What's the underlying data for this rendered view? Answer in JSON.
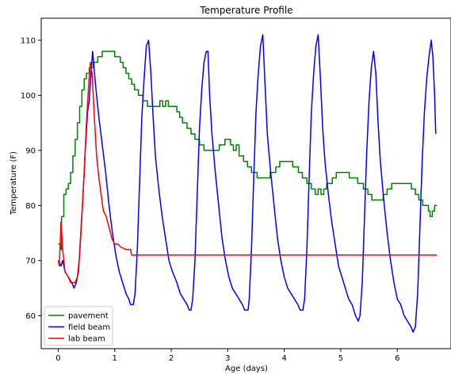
{
  "chart_data": {
    "type": "line",
    "title": "Temperature Profile",
    "xlabel": "Age (days)",
    "ylabel": "Temperature (F)",
    "xlim": [
      -0.3,
      6.95
    ],
    "ylim": [
      54,
      114
    ],
    "xticks": [
      0,
      1,
      2,
      3,
      4,
      5,
      6
    ],
    "yticks": [
      60,
      70,
      80,
      90,
      100,
      110
    ],
    "grid": false,
    "legend_position": "lower-left",
    "series": [
      {
        "name": "pavement",
        "color": "#008000",
        "style": "step",
        "points": [
          [
            0.0,
            73
          ],
          [
            0.04,
            72
          ],
          [
            0.06,
            78
          ],
          [
            0.1,
            82
          ],
          [
            0.14,
            83
          ],
          [
            0.18,
            84
          ],
          [
            0.22,
            86
          ],
          [
            0.26,
            89
          ],
          [
            0.3,
            92
          ],
          [
            0.34,
            95
          ],
          [
            0.38,
            98
          ],
          [
            0.42,
            101
          ],
          [
            0.46,
            103
          ],
          [
            0.5,
            104
          ],
          [
            0.55,
            105
          ],
          [
            0.62,
            106
          ],
          [
            0.7,
            107
          ],
          [
            0.78,
            108
          ],
          [
            0.95,
            108
          ],
          [
            1.0,
            107
          ],
          [
            1.1,
            106
          ],
          [
            1.15,
            105
          ],
          [
            1.2,
            104
          ],
          [
            1.25,
            103
          ],
          [
            1.3,
            102
          ],
          [
            1.35,
            101
          ],
          [
            1.42,
            100
          ],
          [
            1.5,
            99
          ],
          [
            1.58,
            98
          ],
          [
            1.75,
            98
          ],
          [
            1.8,
            99
          ],
          [
            1.85,
            98
          ],
          [
            1.9,
            99
          ],
          [
            1.95,
            98
          ],
          [
            2.05,
            98
          ],
          [
            2.1,
            97
          ],
          [
            2.15,
            96
          ],
          [
            2.2,
            95
          ],
          [
            2.28,
            94
          ],
          [
            2.35,
            93
          ],
          [
            2.42,
            92
          ],
          [
            2.5,
            91
          ],
          [
            2.58,
            90
          ],
          [
            2.8,
            90
          ],
          [
            2.85,
            91
          ],
          [
            2.95,
            92
          ],
          [
            3.05,
            91
          ],
          [
            3.1,
            90
          ],
          [
            3.15,
            91
          ],
          [
            3.2,
            89
          ],
          [
            3.28,
            88
          ],
          [
            3.35,
            87
          ],
          [
            3.42,
            86
          ],
          [
            3.52,
            85
          ],
          [
            3.7,
            85
          ],
          [
            3.75,
            86
          ],
          [
            3.85,
            87
          ],
          [
            3.92,
            88
          ],
          [
            4.1,
            88
          ],
          [
            4.15,
            87
          ],
          [
            4.25,
            86
          ],
          [
            4.32,
            85
          ],
          [
            4.4,
            84
          ],
          [
            4.48,
            83
          ],
          [
            4.55,
            82
          ],
          [
            4.6,
            83
          ],
          [
            4.65,
            82
          ],
          [
            4.7,
            83
          ],
          [
            4.75,
            84
          ],
          [
            4.85,
            85
          ],
          [
            4.92,
            86
          ],
          [
            5.1,
            86
          ],
          [
            5.15,
            85
          ],
          [
            5.25,
            85
          ],
          [
            5.3,
            84
          ],
          [
            5.4,
            83
          ],
          [
            5.48,
            82
          ],
          [
            5.55,
            81
          ],
          [
            5.72,
            81
          ],
          [
            5.75,
            82
          ],
          [
            5.82,
            83
          ],
          [
            5.9,
            84
          ],
          [
            6.2,
            84
          ],
          [
            6.25,
            83
          ],
          [
            6.32,
            82
          ],
          [
            6.38,
            81
          ],
          [
            6.45,
            80
          ],
          [
            6.55,
            79
          ],
          [
            6.58,
            78
          ],
          [
            6.62,
            79
          ],
          [
            6.66,
            80
          ],
          [
            6.7,
            80
          ]
        ]
      },
      {
        "name": "field beam",
        "color": "#0000ff",
        "style": "line",
        "points": [
          [
            0.0,
            70
          ],
          [
            0.05,
            69
          ],
          [
            0.08,
            70
          ],
          [
            0.12,
            68
          ],
          [
            0.18,
            67
          ],
          [
            0.24,
            66
          ],
          [
            0.28,
            65
          ],
          [
            0.32,
            66
          ],
          [
            0.36,
            68
          ],
          [
            0.4,
            75
          ],
          [
            0.44,
            82
          ],
          [
            0.48,
            90
          ],
          [
            0.52,
            97
          ],
          [
            0.55,
            99
          ],
          [
            0.58,
            104
          ],
          [
            0.61,
            108
          ],
          [
            0.66,
            102
          ],
          [
            0.72,
            96
          ],
          [
            0.78,
            91
          ],
          [
            0.84,
            86
          ],
          [
            0.9,
            80
          ],
          [
            0.96,
            75
          ],
          [
            1.02,
            71
          ],
          [
            1.08,
            68
          ],
          [
            1.14,
            66
          ],
          [
            1.2,
            64
          ],
          [
            1.25,
            63
          ],
          [
            1.28,
            62
          ],
          [
            1.33,
            62
          ],
          [
            1.36,
            64
          ],
          [
            1.4,
            72
          ],
          [
            1.44,
            84
          ],
          [
            1.48,
            96
          ],
          [
            1.52,
            103
          ],
          [
            1.56,
            109
          ],
          [
            1.6,
            110
          ],
          [
            1.64,
            104
          ],
          [
            1.68,
            96
          ],
          [
            1.72,
            89
          ],
          [
            1.78,
            83
          ],
          [
            1.84,
            78
          ],
          [
            1.9,
            74
          ],
          [
            1.96,
            70
          ],
          [
            2.02,
            68
          ],
          [
            2.1,
            66
          ],
          [
            2.16,
            64
          ],
          [
            2.22,
            63
          ],
          [
            2.28,
            62
          ],
          [
            2.32,
            61
          ],
          [
            2.35,
            61
          ],
          [
            2.38,
            63
          ],
          [
            2.42,
            70
          ],
          [
            2.46,
            82
          ],
          [
            2.5,
            94
          ],
          [
            2.54,
            101
          ],
          [
            2.58,
            106
          ],
          [
            2.62,
            108
          ],
          [
            2.65,
            108
          ],
          [
            2.68,
            100
          ],
          [
            2.72,
            93
          ],
          [
            2.78,
            86
          ],
          [
            2.84,
            80
          ],
          [
            2.9,
            74
          ],
          [
            2.96,
            70
          ],
          [
            3.02,
            67
          ],
          [
            3.08,
            65
          ],
          [
            3.14,
            64
          ],
          [
            3.2,
            63
          ],
          [
            3.26,
            62
          ],
          [
            3.3,
            61
          ],
          [
            3.36,
            61
          ],
          [
            3.38,
            63
          ],
          [
            3.42,
            72
          ],
          [
            3.46,
            85
          ],
          [
            3.5,
            97
          ],
          [
            3.54,
            104
          ],
          [
            3.58,
            109
          ],
          [
            3.62,
            111
          ],
          [
            3.66,
            102
          ],
          [
            3.7,
            93
          ],
          [
            3.76,
            86
          ],
          [
            3.82,
            80
          ],
          [
            3.88,
            74
          ],
          [
            3.94,
            70
          ],
          [
            4.0,
            67
          ],
          [
            4.06,
            65
          ],
          [
            4.12,
            64
          ],
          [
            4.18,
            63
          ],
          [
            4.24,
            62
          ],
          [
            4.28,
            61
          ],
          [
            4.33,
            61
          ],
          [
            4.36,
            63
          ],
          [
            4.4,
            72
          ],
          [
            4.44,
            85
          ],
          [
            4.48,
            97
          ],
          [
            4.52,
            104
          ],
          [
            4.56,
            109
          ],
          [
            4.6,
            111
          ],
          [
            4.64,
            103
          ],
          [
            4.68,
            94
          ],
          [
            4.72,
            88
          ],
          [
            4.78,
            82
          ],
          [
            4.84,
            77
          ],
          [
            4.9,
            73
          ],
          [
            4.96,
            69
          ],
          [
            5.02,
            67
          ],
          [
            5.08,
            65
          ],
          [
            5.14,
            63
          ],
          [
            5.2,
            62
          ],
          [
            5.26,
            60
          ],
          [
            5.31,
            59
          ],
          [
            5.34,
            60
          ],
          [
            5.38,
            66
          ],
          [
            5.42,
            78
          ],
          [
            5.46,
            90
          ],
          [
            5.5,
            99
          ],
          [
            5.54,
            105
          ],
          [
            5.58,
            108
          ],
          [
            5.62,
            104
          ],
          [
            5.66,
            95
          ],
          [
            5.7,
            88
          ],
          [
            5.76,
            81
          ],
          [
            5.82,
            75
          ],
          [
            5.88,
            70
          ],
          [
            5.94,
            66
          ],
          [
            6.0,
            63
          ],
          [
            6.06,
            62
          ],
          [
            6.12,
            60
          ],
          [
            6.18,
            59
          ],
          [
            6.24,
            58
          ],
          [
            6.28,
            57
          ],
          [
            6.32,
            58
          ],
          [
            6.36,
            64
          ],
          [
            6.4,
            76
          ],
          [
            6.44,
            88
          ],
          [
            6.48,
            97
          ],
          [
            6.52,
            103
          ],
          [
            6.56,
            107
          ],
          [
            6.6,
            110
          ],
          [
            6.63,
            107
          ],
          [
            6.66,
            100
          ],
          [
            6.68,
            93
          ]
        ]
      },
      {
        "name": "lab beam",
        "color": "#ff0000",
        "style": "line",
        "points": [
          [
            0.0,
            70
          ],
          [
            0.02,
            69
          ],
          [
            0.05,
            77
          ],
          [
            0.08,
            72
          ],
          [
            0.12,
            68
          ],
          [
            0.18,
            67
          ],
          [
            0.22,
            66
          ],
          [
            0.26,
            66
          ],
          [
            0.3,
            66
          ],
          [
            0.34,
            67
          ],
          [
            0.38,
            71
          ],
          [
            0.42,
            78
          ],
          [
            0.46,
            86
          ],
          [
            0.5,
            95
          ],
          [
            0.54,
            102
          ],
          [
            0.57,
            106
          ],
          [
            0.6,
            104
          ],
          [
            0.64,
            96
          ],
          [
            0.68,
            89
          ],
          [
            0.72,
            85
          ],
          [
            0.76,
            82
          ],
          [
            0.8,
            79
          ],
          [
            0.85,
            78
          ],
          [
            0.9,
            76
          ],
          [
            0.95,
            74
          ],
          [
            1.0,
            73
          ],
          [
            1.06,
            73
          ],
          [
            1.1,
            72.5
          ],
          [
            1.2,
            72
          ],
          [
            1.28,
            72
          ],
          [
            1.3,
            71
          ],
          [
            2.0,
            71
          ],
          [
            3.0,
            71
          ],
          [
            4.0,
            71
          ],
          [
            5.0,
            71
          ],
          [
            6.0,
            71
          ],
          [
            6.7,
            71
          ]
        ]
      }
    ]
  }
}
